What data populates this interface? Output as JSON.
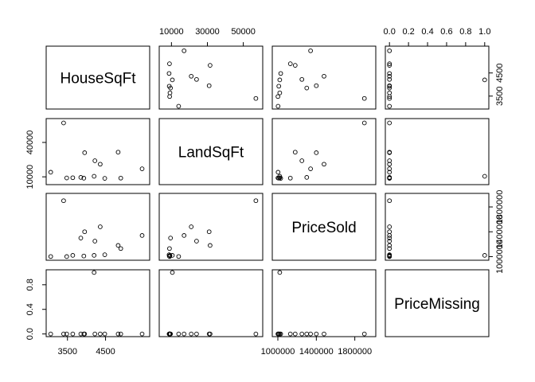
{
  "chart_data": {
    "type": "scatter",
    "title": "",
    "variables": [
      "HouseSqFt",
      "LandSqFt",
      "PriceSold",
      "PriceMissing"
    ],
    "axis_ticks": {
      "HouseSqFt": [
        3500,
        4500
      ],
      "LandSqFt": [
        10000,
        30000,
        50000
      ],
      "PriceSold": [
        1000000,
        1400000,
        1800000
      ],
      "PriceMissing": [
        0.0,
        0.2,
        0.4,
        0.6,
        0.8,
        1.0
      ]
    },
    "axis_ticks_left": {
      "LandSqFt": [
        10000,
        40000
      ],
      "PriceMissing": [
        0.0,
        0.4,
        0.8
      ]
    },
    "axis_ranges": {
      "HouseSqFt": [
        3050,
        5550
      ],
      "LandSqFt": [
        5500,
        58500
      ],
      "PriceSold": [
        985000,
        1975000
      ],
      "PriceMissing": [
        0,
        1
      ]
    },
    "grid": false,
    "observations": [
      {
        "HouseSqFt": 3060,
        "LandSqFt": 14000,
        "PriceSold": 1002000,
        "PriceMissing": 0
      },
      {
        "HouseSqFt": 3400,
        "LandSqFt": 57000,
        "PriceSold": 1900000,
        "PriceMissing": 0
      },
      {
        "HouseSqFt": 3480,
        "LandSqFt": 9000,
        "PriceSold": 1001000,
        "PriceMissing": 0
      },
      {
        "HouseSqFt": 3640,
        "LandSqFt": 9200,
        "PriceSold": 1020000,
        "PriceMissing": 0
      },
      {
        "HouseSqFt": 3850,
        "LandSqFt": 9500,
        "PriceSold": 1300000,
        "PriceMissing": 0
      },
      {
        "HouseSqFt": 3950,
        "LandSqFt": 31000,
        "PriceSold": 1400000,
        "PriceMissing": 0
      },
      {
        "HouseSqFt": 3930,
        "LandSqFt": 8800,
        "PriceSold": 1010000,
        "PriceMissing": 0
      },
      {
        "HouseSqFt": 4200,
        "LandSqFt": 10500,
        "PriceSold": 1020000,
        "PriceMissing": 1
      },
      {
        "HouseSqFt": 4220,
        "LandSqFt": 24000,
        "PriceSold": 1250000,
        "PriceMissing": 0
      },
      {
        "HouseSqFt": 4360,
        "LandSqFt": 21000,
        "PriceSold": 1480000,
        "PriceMissing": 0
      },
      {
        "HouseSqFt": 4480,
        "LandSqFt": 8700,
        "PriceSold": 1030000,
        "PriceMissing": 0
      },
      {
        "HouseSqFt": 4830,
        "LandSqFt": 31500,
        "PriceSold": 1180000,
        "PriceMissing": 0
      },
      {
        "HouseSqFt": 4900,
        "LandSqFt": 8900,
        "PriceSold": 1130000,
        "PriceMissing": 0
      },
      {
        "HouseSqFt": 5460,
        "LandSqFt": 17000,
        "PriceSold": 1340000,
        "PriceMissing": 0
      }
    ]
  }
}
